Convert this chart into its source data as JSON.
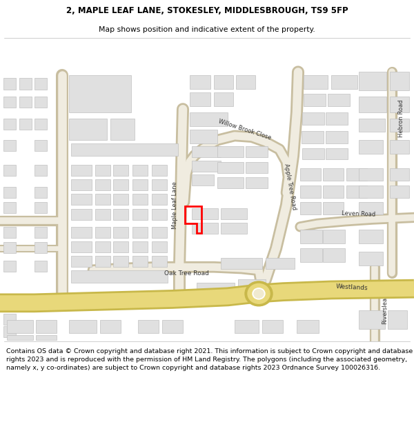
{
  "title_line1": "2, MAPLE LEAF LANE, STOKESLEY, MIDDLESBROUGH, TS9 5FP",
  "title_line2": "Map shows position and indicative extent of the property.",
  "title_fontsize": 8.5,
  "subtitle_fontsize": 7.8,
  "footer_text": "Contains OS data © Crown copyright and database right 2021. This information is subject to Crown copyright and database rights 2023 and is reproduced with the permission of HM Land Registry. The polygons (including the associated geometry, namely x, y co-ordinates) are subject to Crown copyright and database rights 2023 Ordnance Survey 100026316.",
  "footer_fontsize": 6.8,
  "bg_color": "#ffffff",
  "map_bg": "#ffffff",
  "building_color": "#e0e0e0",
  "building_edge": "#c0c0c0",
  "road_fill": "#f0ece0",
  "road_edge": "#c8bea0",
  "highlight_color": "#ff0000",
  "yellow_road": "#e8d87a",
  "yellow_road_edge": "#c8b84a",
  "label_color": "#333333",
  "roundabout_center": "#f0ead0"
}
